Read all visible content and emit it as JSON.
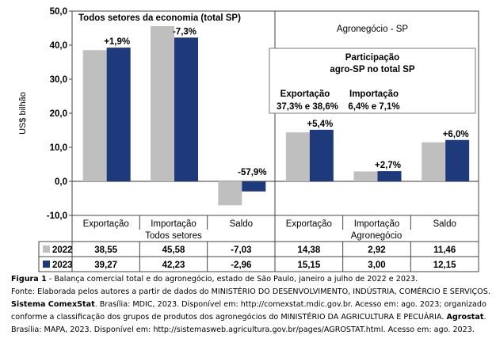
{
  "chart_data": {
    "type": "bar",
    "ylabel": "US$ bilhão",
    "ylim": [
      -10,
      50
    ],
    "yticks": [
      "-10,0",
      "0,0",
      "10,0",
      "20,0",
      "30,0",
      "40,0",
      "50,0"
    ],
    "grid": false,
    "categories": [
      "Exportação",
      "Importação",
      "Saldo",
      "Exportação",
      "Importação",
      "Saldo"
    ],
    "groups": [
      {
        "label": "Todos setores",
        "categories": [
          "Exportação",
          "Importação",
          "Saldo"
        ]
      },
      {
        "label": "Agronegócio",
        "categories": [
          "Exportação",
          "Importação",
          "Saldo"
        ]
      }
    ],
    "series": [
      {
        "name": "2022",
        "color": "#bfbfbf",
        "values": [
          38.55,
          45.58,
          -7.03,
          14.38,
          2.92,
          11.46
        ],
        "labels": [
          "38,55",
          "45,58",
          "-7,03",
          "14,38",
          "2,92",
          "11,46"
        ]
      },
      {
        "name": "2023",
        "color": "#1f3a7a",
        "values": [
          39.27,
          42.23,
          -2.96,
          15.15,
          3.0,
          12.15
        ],
        "labels": [
          "39,27",
          "42,23",
          "-2,96",
          "15,15",
          "3,00",
          "12,15"
        ]
      }
    ],
    "change_labels": [
      "+1,9%",
      "-7,3%",
      "-57,9%",
      "+5,4%",
      "+2,7%",
      "+6,0%"
    ],
    "panel_titles": [
      "Todos setores da economia (total SP)",
      "Agronegócio - SP"
    ],
    "participation": {
      "title_line1": "Participação",
      "title_line2": "agro-SP no total SP",
      "export_label": "Exportação",
      "export_value": "37,3% e 38,6%",
      "import_label": "Importação",
      "import_value": "6,4% e 7,1%"
    }
  },
  "caption": {
    "figure_label": "Figura 1",
    "figure_text": " - Balança comercial total e do agronegócio, estado de São Paulo, janeiro a julho de 2022 e 2023.",
    "line2": "Fonte: Elaborada pelos autores a partir de dados do MINISTÉRIO DO DESENVOLVIMENTO, INDÚSTRIA, COMÉRCIO E SERVIÇOS.",
    "line3_bold": "Sistema ComexStat",
    "line3_text": ". Brasília: MDIC, 2023. Disponível em: http://comexstat.mdic.gov.br. Acesso em: ago. 2023; organizado",
    "line4_text": "conforme a classificação dos grupos de produtos dos agronegócios do MINISTÉRIO DA AGRICULTURA E PECUÁRIA. ",
    "line4_bold": "Agrostat",
    "line4_end": ".",
    "line5": "Brasília: MAPA, 2023. Disponível em: http://sistemasweb.agricultura.gov.br/pages/AGROSTAT.html. Acesso em: ago. 2023."
  }
}
